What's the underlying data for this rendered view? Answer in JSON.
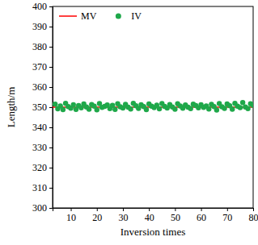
{
  "chart_data": {
    "type": "scatter",
    "x_label": "Inversion times",
    "y_label": "Length/m",
    "xlim": [
      3,
      80
    ],
    "xticks": [
      10,
      20,
      30,
      40,
      50,
      60,
      70,
      80
    ],
    "ylim": [
      300,
      400
    ],
    "yticks": [
      300,
      310,
      320,
      330,
      340,
      350,
      360,
      370,
      380,
      390,
      400
    ],
    "legend": "upper left",
    "series": [
      {
        "name": "MV",
        "type": "line",
        "color": "#ff0000",
        "line_style": "solid",
        "x": [
          3,
          80
        ],
        "values": [
          350,
          350
        ]
      },
      {
        "name": "IV",
        "type": "scatter",
        "color": "#1fa84a",
        "marker": "circle",
        "x": [
          4,
          5,
          6,
          7,
          8,
          9,
          10,
          11,
          12,
          13,
          14,
          15,
          16,
          17,
          18,
          19,
          20,
          21,
          22,
          23,
          24,
          25,
          26,
          27,
          28,
          29,
          30,
          31,
          32,
          33,
          34,
          35,
          36,
          37,
          38,
          39,
          40,
          41,
          42,
          43,
          44,
          45,
          46,
          47,
          48,
          49,
          50,
          51,
          52,
          53,
          54,
          55,
          56,
          57,
          58,
          59,
          60,
          61,
          62,
          63,
          64,
          65,
          66,
          67,
          68,
          69,
          70,
          71,
          72,
          73,
          74,
          75,
          76,
          77,
          78,
          79,
          80
        ],
        "values": [
          351.5,
          349.2,
          350.6,
          348.8,
          351.9,
          350.3,
          349.5,
          351.2,
          348.9,
          350.8,
          349.7,
          351.6,
          350.1,
          349.0,
          351.3,
          350.5,
          348.7,
          351.8,
          349.9,
          350.4,
          351.1,
          349.3,
          350.9,
          348.9,
          351.7,
          350.2,
          349.6,
          351.4,
          350.0,
          349.1,
          351.9,
          350.7,
          349.4,
          351.2,
          350.3,
          348.8,
          351.6,
          350.5,
          349.8,
          351.0,
          349.2,
          351.8,
          350.4,
          349.6,
          351.3,
          350.1,
          349.0,
          351.7,
          350.6,
          349.5,
          351.1,
          350.0,
          349.3,
          351.5,
          350.8,
          349.7,
          351.2,
          349.9,
          350.6,
          349.1,
          351.4,
          350.3,
          348.6,
          351.8,
          350.2,
          349.4,
          351.6,
          350.7,
          349.0,
          351.9,
          350.5,
          349.8,
          352.3,
          350.1,
          349.3,
          351.7,
          350.9
        ]
      }
    ]
  }
}
